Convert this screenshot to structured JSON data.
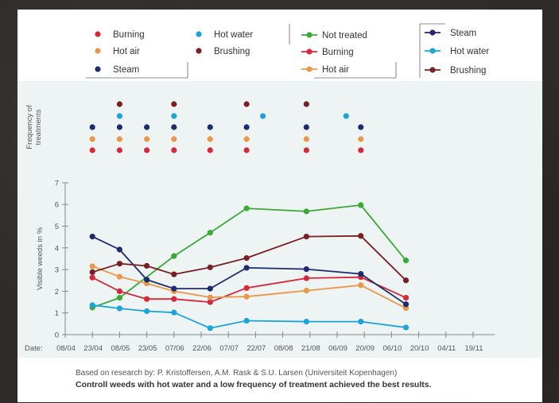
{
  "chart_data": {
    "type": "line",
    "ylabel": "Visible weeds in %",
    "freq_label": [
      "Frequency of",
      "treatments"
    ],
    "date_prefix": "Date:",
    "ylim": [
      0,
      7
    ],
    "yticks": [
      0,
      1,
      2,
      3,
      4,
      5,
      6,
      7
    ],
    "xtick_labels": [
      "08/04",
      "23/04",
      "08/05",
      "23/05",
      "07/06",
      "22/06",
      "07/07",
      "22/07",
      "08/08",
      "21/08",
      "06/09",
      "20/09",
      "06/10",
      "20/10",
      "04/11",
      "19/11"
    ],
    "series": [
      {
        "name": "Not treated",
        "color": "#3aa935",
        "points": [
          [
            1,
            1.25
          ],
          [
            2,
            1.7
          ],
          [
            4,
            3.62
          ],
          [
            5.33,
            4.7
          ],
          [
            6.67,
            5.82
          ],
          [
            8.87,
            5.68
          ],
          [
            10.87,
            5.97
          ],
          [
            12.53,
            3.42
          ]
        ]
      },
      {
        "name": "Burning",
        "color": "#d42a3c",
        "points": [
          [
            1,
            2.63
          ],
          [
            2,
            2.0
          ],
          [
            3,
            1.64
          ],
          [
            4,
            1.64
          ],
          [
            5.33,
            1.5
          ],
          [
            6.67,
            2.15
          ],
          [
            8.87,
            2.6
          ],
          [
            10.87,
            2.65
          ],
          [
            12.53,
            1.7
          ]
        ]
      },
      {
        "name": "Hot air",
        "color": "#e9984a",
        "points": [
          [
            1,
            3.15
          ],
          [
            2,
            2.67
          ],
          [
            3,
            2.36
          ],
          [
            4,
            2.0
          ],
          [
            5.33,
            1.72
          ],
          [
            6.67,
            1.75
          ],
          [
            8.87,
            2.03
          ],
          [
            10.87,
            2.28
          ],
          [
            12.53,
            1.22
          ]
        ]
      },
      {
        "name": "Steam",
        "color": "#1e2b6e",
        "points": [
          [
            1,
            4.52
          ],
          [
            2,
            3.92
          ],
          [
            3,
            2.53
          ],
          [
            4,
            2.12
          ],
          [
            5.33,
            2.12
          ],
          [
            6.67,
            3.08
          ],
          [
            8.87,
            3.02
          ],
          [
            10.87,
            2.8
          ],
          [
            12.53,
            1.4
          ]
        ]
      },
      {
        "name": "Hot water",
        "color": "#1ba3dc",
        "points": [
          [
            1,
            1.36
          ],
          [
            2,
            1.21
          ],
          [
            3,
            1.08
          ],
          [
            4,
            1.02
          ],
          [
            5.33,
            0.3
          ],
          [
            6.67,
            0.64
          ],
          [
            8.87,
            0.6
          ],
          [
            10.87,
            0.6
          ],
          [
            12.53,
            0.33
          ]
        ]
      },
      {
        "name": "Brushing",
        "color": "#7a1f24",
        "points": [
          [
            1,
            2.88
          ],
          [
            2,
            3.27
          ],
          [
            3,
            3.17
          ],
          [
            4,
            2.78
          ],
          [
            5.33,
            3.1
          ],
          [
            6.67,
            3.53
          ],
          [
            8.87,
            4.52
          ],
          [
            10.87,
            4.55
          ],
          [
            12.53,
            2.5
          ]
        ]
      }
    ],
    "frequency": [
      {
        "name": "Burning",
        "color": "#d42a3c",
        "x": [
          1,
          2,
          3,
          4,
          5.33,
          6.67,
          8.87,
          10.87
        ]
      },
      {
        "name": "Hot air",
        "color": "#e9984a",
        "x": [
          1,
          2,
          3,
          4,
          5.33,
          6.67,
          8.87,
          10.87
        ]
      },
      {
        "name": "Steam",
        "color": "#1e2b6e",
        "x": [
          1,
          2,
          3,
          4,
          5.33,
          6.67,
          8.87,
          10.87
        ]
      },
      {
        "name": "Hot water",
        "color": "#1ba3dc",
        "x": [
          2,
          4,
          7.27,
          10.33
        ]
      },
      {
        "name": "Brushing",
        "color": "#7a1f24",
        "x": [
          2,
          4,
          6.67,
          8.87
        ]
      }
    ],
    "legend_freq": [
      {
        "label": "Burning",
        "color": "#d42a3c"
      },
      {
        "label": "Hot water",
        "color": "#1ba3dc"
      },
      {
        "label": "Hot air",
        "color": "#e9984a"
      },
      {
        "label": "Brushing",
        "color": "#7a1f24"
      },
      {
        "label": "Steam",
        "color": "#1e2b6e"
      }
    ],
    "legend_lines_left": [
      {
        "label": "Not treated",
        "color": "#3aa935"
      },
      {
        "label": "Burning",
        "color": "#d42a3c"
      },
      {
        "label": "Hot air",
        "color": "#e9984a"
      }
    ],
    "legend_lines_right": [
      {
        "label": "Steam",
        "color": "#1e2b6e"
      },
      {
        "label": "Hot water",
        "color": "#1ba3dc"
      },
      {
        "label": "Brushing",
        "color": "#7a1f24"
      }
    ]
  },
  "footer": {
    "source": "Based on research by: P. Kristoffersen, A.M. Rask & S.U. Larsen (Universiteit Kopenhagen)",
    "conclusion": "Controll weeds with hot water and a low frequency of treatment achieved the best results."
  }
}
